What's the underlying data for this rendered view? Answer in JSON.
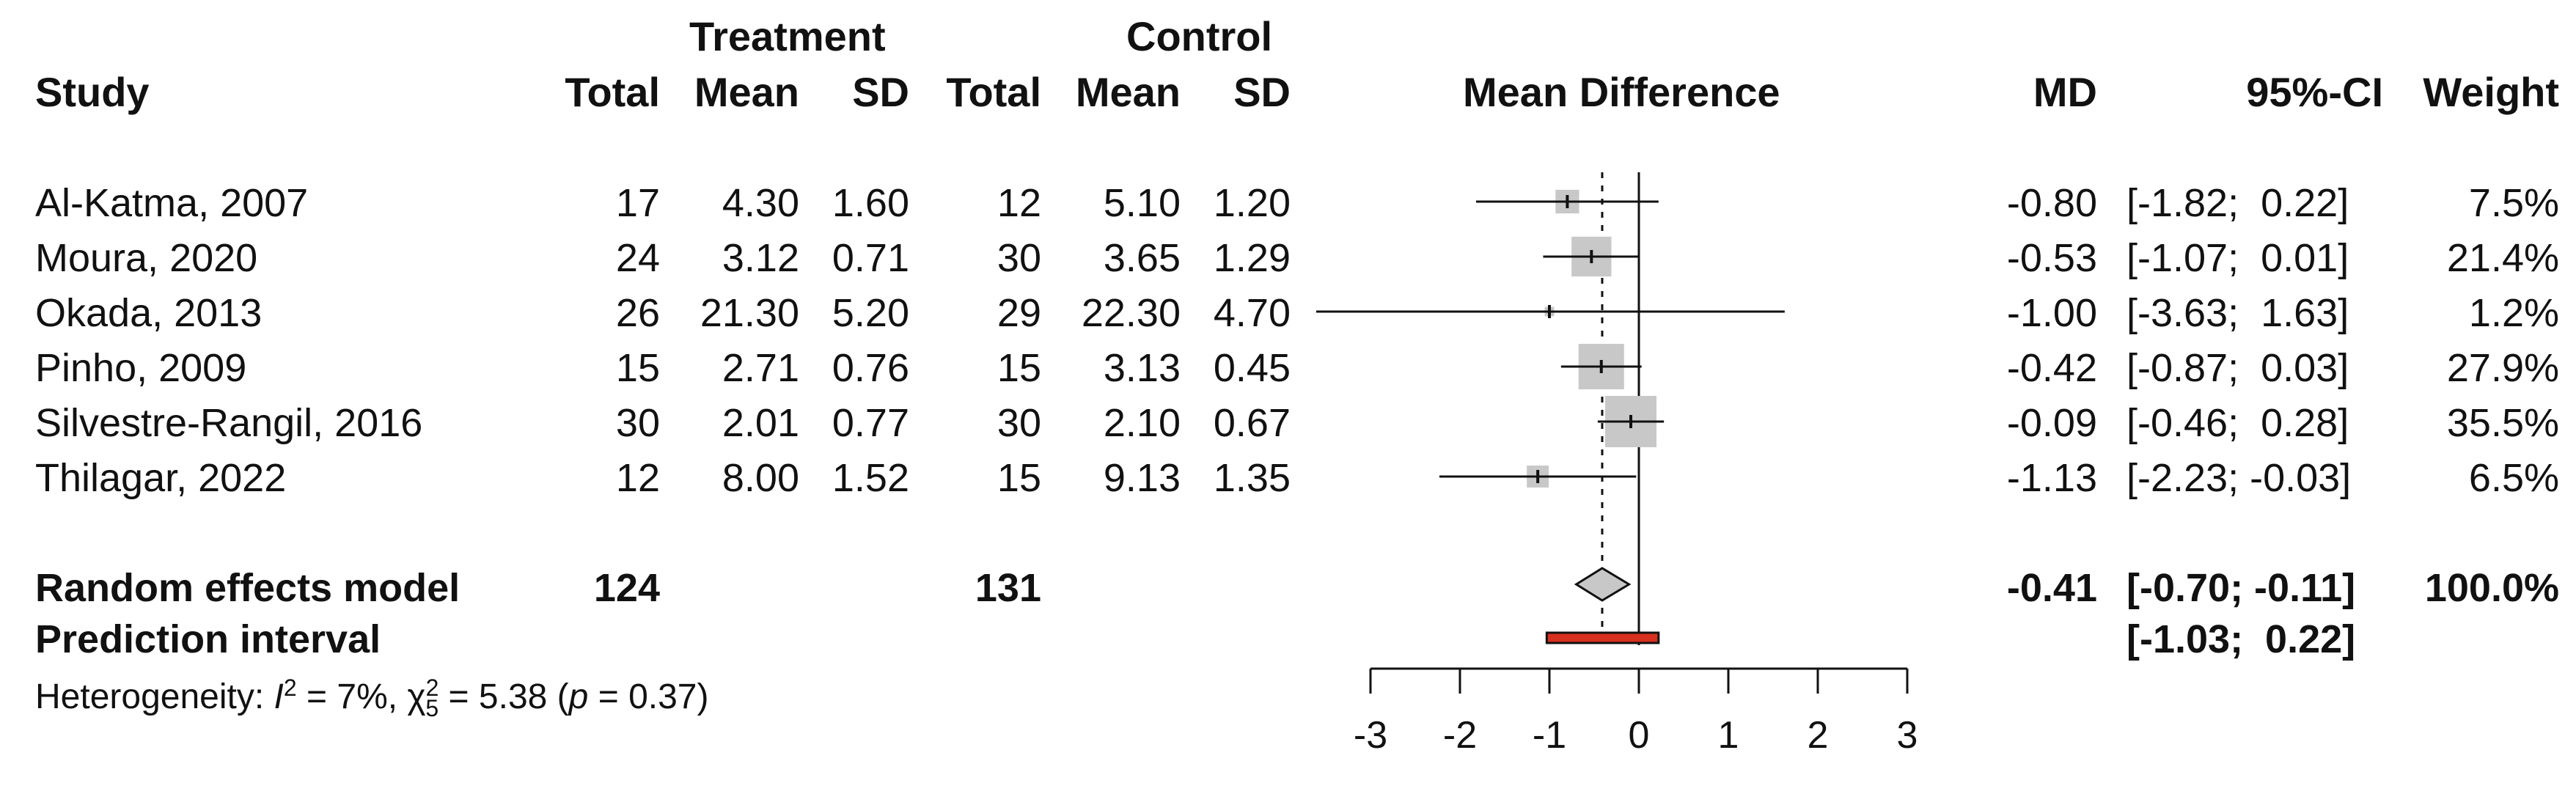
{
  "chart_data": {
    "type": "forest",
    "headers": {
      "group_treatment": "Treatment",
      "group_control": "Control",
      "study": "Study",
      "total": "Total",
      "mean": "Mean",
      "sd": "SD",
      "effect": "Mean Difference",
      "md": "MD",
      "ci": "95%-CI",
      "weight": "Weight"
    },
    "studies": [
      {
        "name": "Al-Katma, 2007",
        "t_total": "17",
        "t_mean": "4.30",
        "t_sd": "1.60",
        "c_total": "12",
        "c_mean": "5.10",
        "c_sd": "1.20",
        "md": -0.8,
        "lo": -1.82,
        "hi": 0.22,
        "md_text": "-0.80",
        "ci_text": "[-1.82;  0.22]",
        "weight": 7.5,
        "weight_text": "7.5%"
      },
      {
        "name": "Moura, 2020",
        "t_total": "24",
        "t_mean": "3.12",
        "t_sd": "0.71",
        "c_total": "30",
        "c_mean": "3.65",
        "c_sd": "1.29",
        "md": -0.53,
        "lo": -1.07,
        "hi": 0.01,
        "md_text": "-0.53",
        "ci_text": "[-1.07;  0.01]",
        "weight": 21.4,
        "weight_text": "21.4%"
      },
      {
        "name": "Okada, 2013",
        "t_total": "26",
        "t_mean": "21.30",
        "t_sd": "5.20",
        "c_total": "29",
        "c_mean": "22.30",
        "c_sd": "4.70",
        "md": -1.0,
        "lo": -3.63,
        "hi": 1.63,
        "md_text": "-1.00",
        "ci_text": "[-3.63;  1.63]",
        "weight": 1.2,
        "weight_text": "1.2%"
      },
      {
        "name": "Pinho, 2009",
        "t_total": "15",
        "t_mean": "2.71",
        "t_sd": "0.76",
        "c_total": "15",
        "c_mean": "3.13",
        "c_sd": "0.45",
        "md": -0.42,
        "lo": -0.87,
        "hi": 0.03,
        "md_text": "-0.42",
        "ci_text": "[-0.87;  0.03]",
        "weight": 27.9,
        "weight_text": "27.9%"
      },
      {
        "name": "Silvestre-Rangil, 2016",
        "t_total": "30",
        "t_mean": "2.01",
        "t_sd": "0.77",
        "c_total": "30",
        "c_mean": "2.10",
        "c_sd": "0.67",
        "md": -0.09,
        "lo": -0.46,
        "hi": 0.28,
        "md_text": "-0.09",
        "ci_text": "[-0.46;  0.28]",
        "weight": 35.5,
        "weight_text": "35.5%"
      },
      {
        "name": "Thilagar, 2022",
        "t_total": "12",
        "t_mean": "8.00",
        "t_sd": "1.52",
        "c_total": "15",
        "c_mean": "9.13",
        "c_sd": "1.35",
        "md": -1.13,
        "lo": -2.23,
        "hi": -0.03,
        "md_text": "-1.13",
        "ci_text": "[-2.23; -0.03]",
        "weight": 6.5,
        "weight_text": "6.5%"
      }
    ],
    "random_effects": {
      "label": "Random effects model",
      "t_total": "124",
      "c_total": "131",
      "md": -0.41,
      "lo": -0.7,
      "hi": -0.11,
      "md_text": "-0.41",
      "ci_text": "[-0.70; -0.11]",
      "weight_text": "100.0%"
    },
    "prediction_interval": {
      "label": "Prediction interval",
      "lo": -1.03,
      "hi": 0.22,
      "ci_text": "[-1.03;  0.22]"
    },
    "heterogeneity": {
      "prefix": "Heterogeneity: ",
      "i2_symbol": "I",
      "i2_sup": "2",
      "i2_value": " = 7%, ",
      "chi_symbol": "χ",
      "chi_sup": "2",
      "chi_sub": "5",
      "chi_value": " = 5.38 (",
      "p_symbol": "p",
      "p_value": " = 0.37)"
    },
    "xaxis": {
      "ticks": [
        -3,
        -2,
        -1,
        0,
        1,
        2,
        3
      ],
      "tick_labels": [
        "-3",
        "-2",
        "-1",
        "0",
        "1",
        "2",
        "3"
      ],
      "range": [
        -3,
        3
      ]
    },
    "colors": {
      "square": "#c8c8c8",
      "diamond": "#c8c8c8",
      "prediction": "#d7301f",
      "line": "#111111"
    }
  }
}
